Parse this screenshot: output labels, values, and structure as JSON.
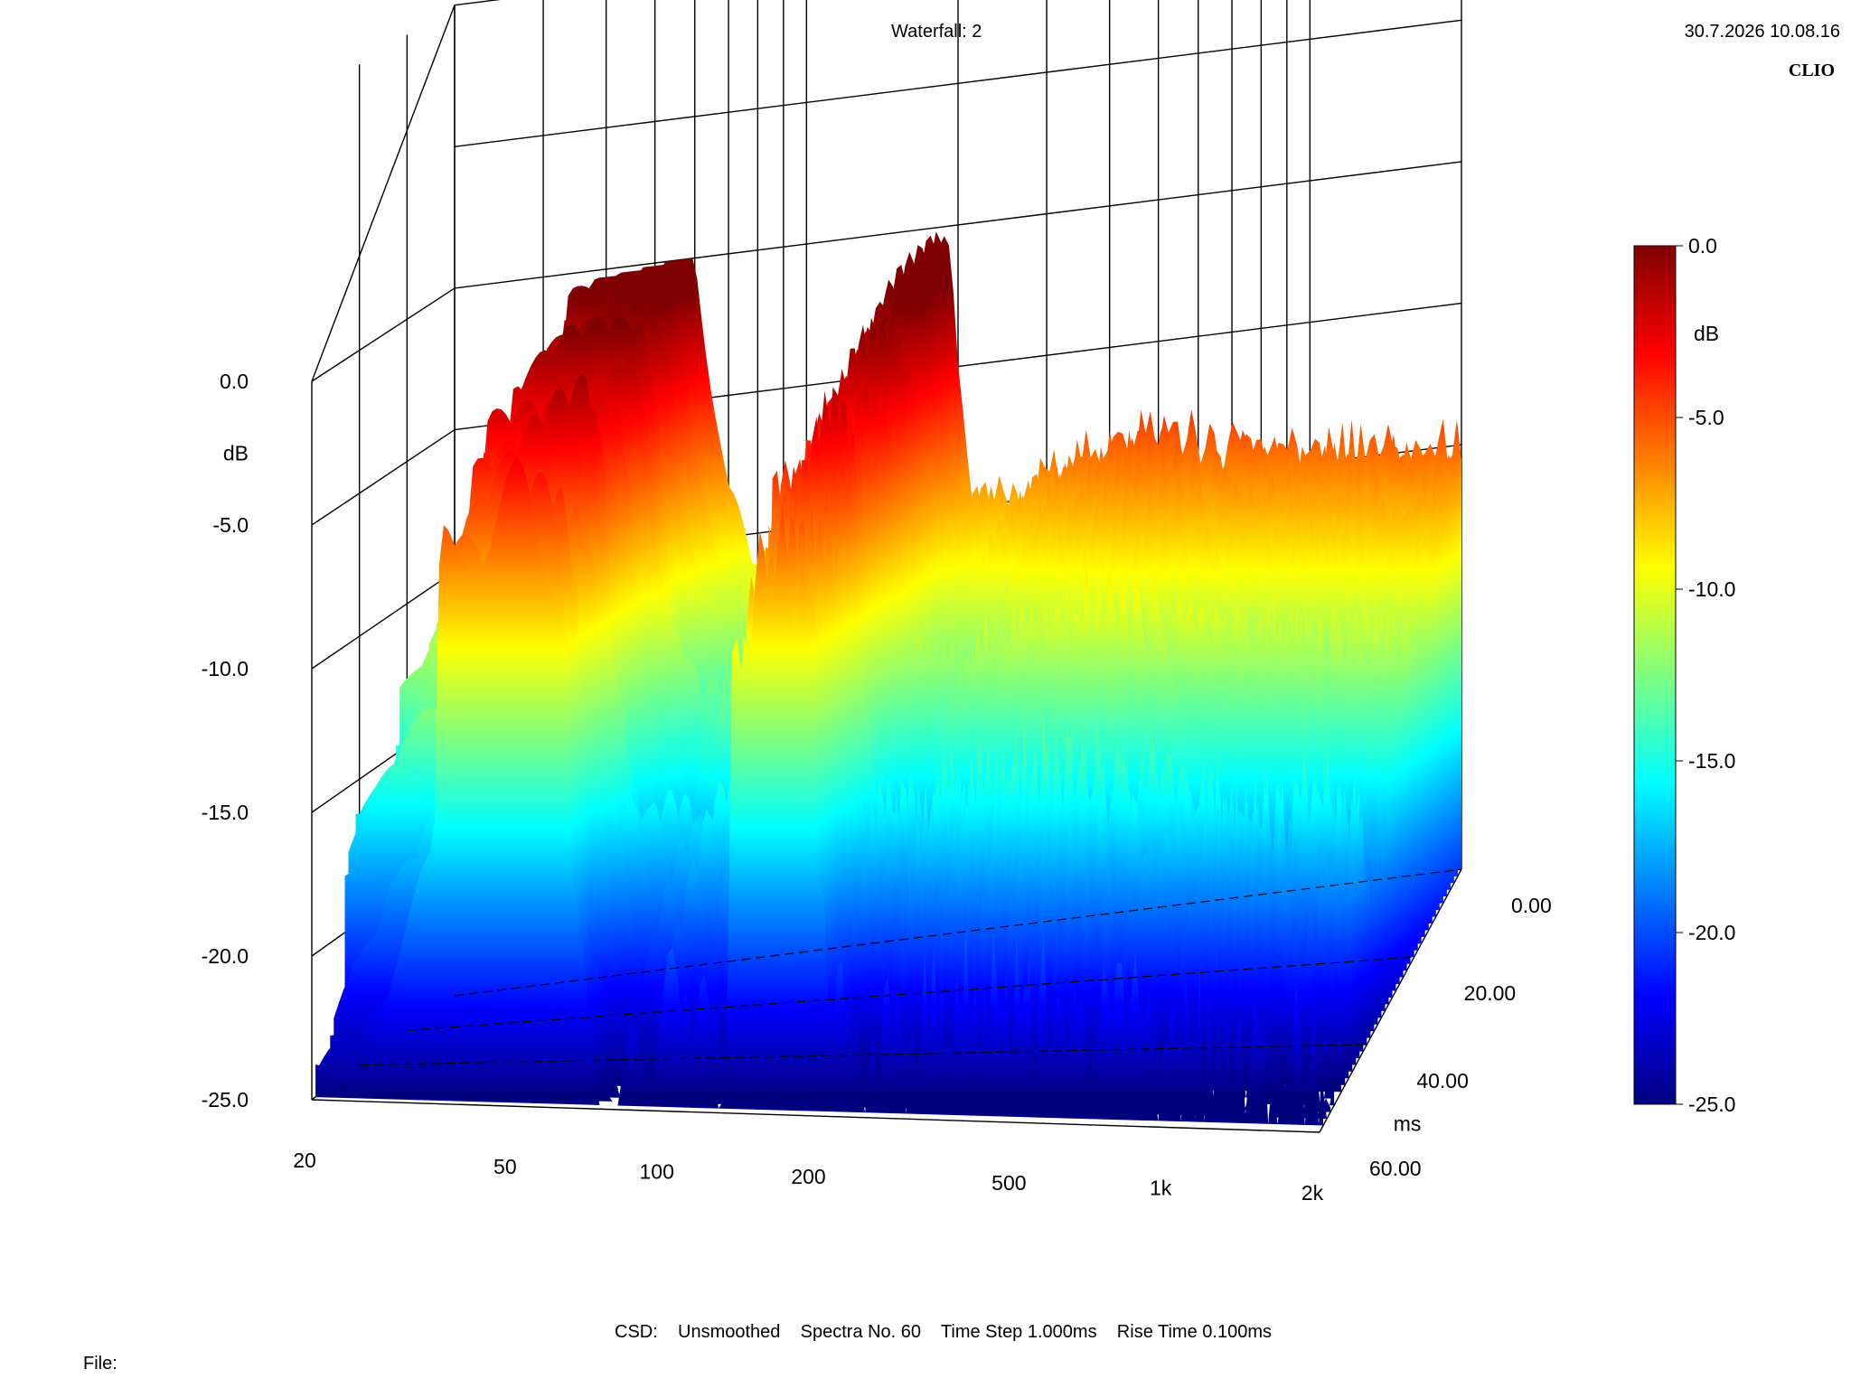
{
  "header": {
    "title": "Waterfall: 2",
    "timestamp": "30.7.2026 10.08.16",
    "brand": "CLIO"
  },
  "footer": {
    "csd_info": "CSD:    Unsmoothed    Spectra No. 60    Time Step 1.000ms    Rise Time 0.100ms",
    "file_label": "File:"
  },
  "chart_data": {
    "type": "waterfall",
    "title": "Waterfall: 2",
    "x_axis": {
      "scale": "log",
      "range": [
        20,
        2000
      ],
      "tick_labels": [
        "20",
        "50",
        "100",
        "200",
        "500",
        "1k",
        "2k"
      ],
      "tick_values": [
        20,
        50,
        100,
        200,
        500,
        1000,
        2000
      ]
    },
    "y_axis": {
      "label": "dB",
      "range": [
        -25,
        0
      ],
      "tick_labels": [
        "0.0",
        "-5.0",
        "-10.0",
        "-15.0",
        "-20.0",
        "-25.0"
      ],
      "tick_values": [
        0,
        -5,
        -10,
        -15,
        -20,
        -25
      ]
    },
    "z_axis": {
      "label": "ms",
      "range": [
        0,
        60
      ],
      "tick_labels": [
        "0.00",
        "20.00",
        "40.00",
        "60.00"
      ],
      "tick_values": [
        0,
        20,
        40,
        60
      ]
    },
    "colorbar": {
      "label": "dB",
      "range": [
        -25,
        0
      ],
      "tick_labels": [
        "0.0",
        "-5.0",
        "-10.0",
        "-15.0",
        "-20.0",
        "-25.0"
      ],
      "tick_values": [
        0,
        -5,
        -10,
        -15,
        -20,
        -25
      ],
      "colors": [
        "#00007f",
        "#0000ff",
        "#007fff",
        "#00ffff",
        "#7fff7f",
        "#ffff00",
        "#ff7f00",
        "#ff0000",
        "#7f0000"
      ]
    },
    "spectra_count": 60,
    "time_step_ms": 1.0,
    "rise_time_ms": 0.1,
    "smoothing": "Unsmoothed",
    "front_spectrum": [
      {
        "f": 20,
        "db": -10.0
      },
      {
        "f": 25,
        "db": -7.5
      },
      {
        "f": 30,
        "db": -6.5
      },
      {
        "f": 34,
        "db": -5.5
      },
      {
        "f": 36,
        "db": -1.0
      },
      {
        "f": 45,
        "db": -0.2
      },
      {
        "f": 60,
        "db": 0.0
      },
      {
        "f": 64,
        "db": -4.0
      },
      {
        "f": 70,
        "db": -9.0
      },
      {
        "f": 78,
        "db": -11.0
      },
      {
        "f": 90,
        "db": -10.0
      },
      {
        "f": 105,
        "db": -9.5
      },
      {
        "f": 120,
        "db": -9.0
      },
      {
        "f": 128,
        "db": -9.8
      },
      {
        "f": 135,
        "db": -3.5
      },
      {
        "f": 160,
        "db": -1.5
      },
      {
        "f": 185,
        "db": -0.5
      },
      {
        "f": 195,
        "db": -2.0
      },
      {
        "f": 210,
        "db": -9.0
      },
      {
        "f": 240,
        "db": -10.0
      },
      {
        "f": 280,
        "db": -9.5
      },
      {
        "f": 330,
        "db": -8.8
      },
      {
        "f": 400,
        "db": -8.5
      },
      {
        "f": 480,
        "db": -8.0
      },
      {
        "f": 560,
        "db": -8.3
      },
      {
        "f": 650,
        "db": -9.0
      },
      {
        "f": 760,
        "db": -9.0
      },
      {
        "f": 900,
        "db": -9.5
      },
      {
        "f": 1100,
        "db": -9.5
      },
      {
        "f": 1400,
        "db": -9.6
      },
      {
        "f": 1700,
        "db": -9.8
      },
      {
        "f": 2000,
        "db": -10.0
      }
    ]
  }
}
